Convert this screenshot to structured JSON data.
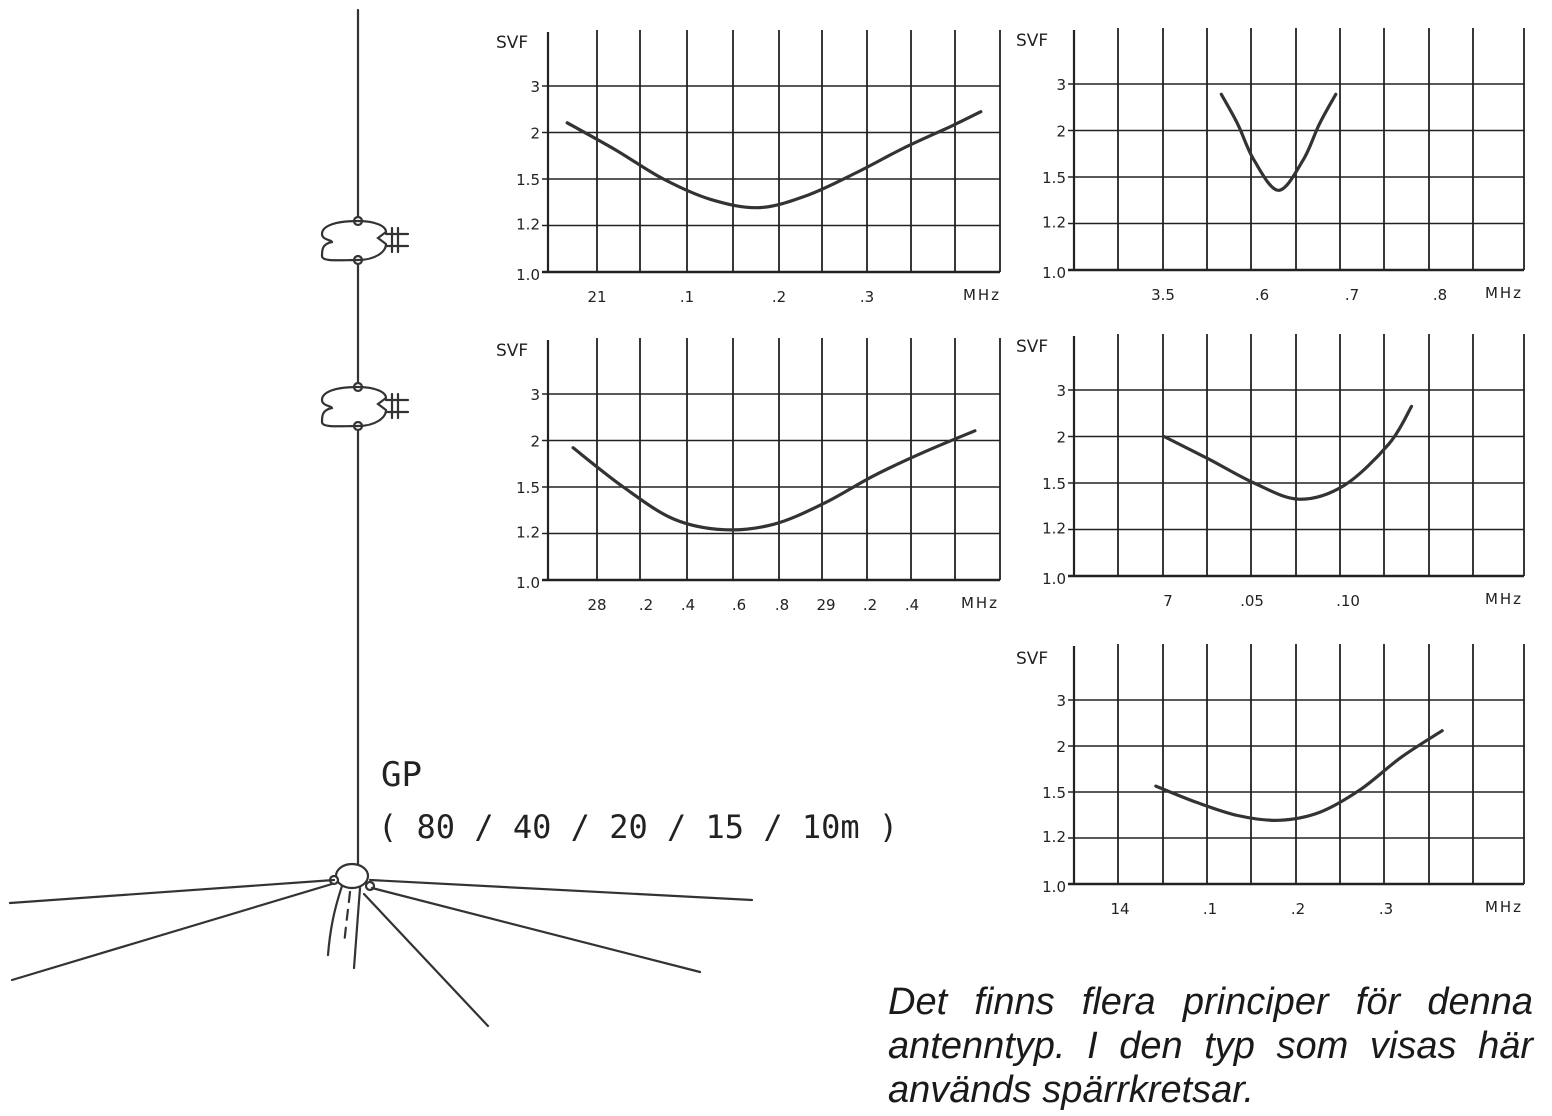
{
  "antenna": {
    "name": "GP",
    "bands": "( 80 / 40 / 20 / 15 / 10m )"
  },
  "caption": "Det finns flera principer för denna antenntyp. I den typ som visas här används spärrkretsar.",
  "chart_data": [
    {
      "type": "line",
      "ylabel": "SVF",
      "xunit": "MHz",
      "yticks": [
        "1.0",
        "1.2",
        "1.5",
        "2",
        "3"
      ],
      "xticks": [
        "21",
        ".1",
        ".2",
        ".3"
      ],
      "xlim": [
        20.98,
        21.45
      ],
      "ylim": [
        1.0,
        3.0
      ],
      "series": [
        {
          "x": [
            21.0,
            21.05,
            21.1,
            21.15,
            21.2,
            21.25,
            21.3,
            21.35,
            21.4,
            21.43
          ],
          "values": [
            2.15,
            1.78,
            1.5,
            1.35,
            1.3,
            1.38,
            1.55,
            1.8,
            2.1,
            2.35
          ]
        }
      ]
    },
    {
      "type": "line",
      "ylabel": "SVF",
      "xunit": "MHz",
      "yticks": [
        "1.0",
        "1.2",
        "1.5",
        "2",
        "3"
      ],
      "xticks": [
        "3.5",
        ".6",
        ".7",
        ".8"
      ],
      "xlim": [
        3.35,
        3.9
      ],
      "ylim": [
        1.0,
        3.0
      ],
      "series": [
        {
          "x": [
            3.53,
            3.55,
            3.57,
            3.6,
            3.63,
            3.65,
            3.67
          ],
          "values": [
            2.7,
            2.1,
            1.65,
            1.4,
            1.65,
            2.1,
            2.7
          ]
        }
      ]
    },
    {
      "type": "line",
      "ylabel": "SVF",
      "xunit": "MHz",
      "yticks": [
        "1.0",
        "1.2",
        "1.5",
        "2",
        "3"
      ],
      "xticks": [
        "28",
        ".2",
        ".4",
        ".6",
        ".8",
        "29",
        ".2",
        ".4"
      ],
      "xlim": [
        27.9,
        29.7
      ],
      "ylim": [
        1.0,
        3.0
      ],
      "series": [
        {
          "x": [
            28.0,
            28.2,
            28.4,
            28.6,
            28.8,
            29.0,
            29.2,
            29.4,
            29.6
          ],
          "values": [
            1.9,
            1.5,
            1.28,
            1.22,
            1.25,
            1.38,
            1.6,
            1.85,
            2.15
          ]
        }
      ]
    },
    {
      "type": "line",
      "ylabel": "SVF",
      "xunit": "MHz",
      "yticks": [
        "1.0",
        "1.2",
        "1.5",
        "2",
        "3"
      ],
      "xticks": [
        "7",
        ".05",
        ".10"
      ],
      "xlim": [
        6.95,
        7.15
      ],
      "ylim": [
        1.0,
        3.0
      ],
      "series": [
        {
          "x": [
            6.99,
            7.01,
            7.03,
            7.05,
            7.07,
            7.09,
            7.1
          ],
          "values": [
            2.0,
            1.72,
            1.5,
            1.38,
            1.48,
            1.9,
            2.55
          ]
        }
      ]
    },
    {
      "type": "line",
      "ylabel": "SVF",
      "xunit": "MHz",
      "yticks": [
        "1.0",
        "1.2",
        "1.5",
        "2",
        "3"
      ],
      "xticks": [
        "14",
        ".1",
        ".2",
        ".3"
      ],
      "xlim": [
        13.9,
        14.45
      ],
      "ylim": [
        1.0,
        3.0
      ],
      "series": [
        {
          "x": [
            14.0,
            14.05,
            14.1,
            14.15,
            14.2,
            14.25,
            14.3,
            14.35
          ],
          "values": [
            1.55,
            1.42,
            1.33,
            1.3,
            1.35,
            1.52,
            1.85,
            2.25
          ]
        }
      ]
    }
  ]
}
